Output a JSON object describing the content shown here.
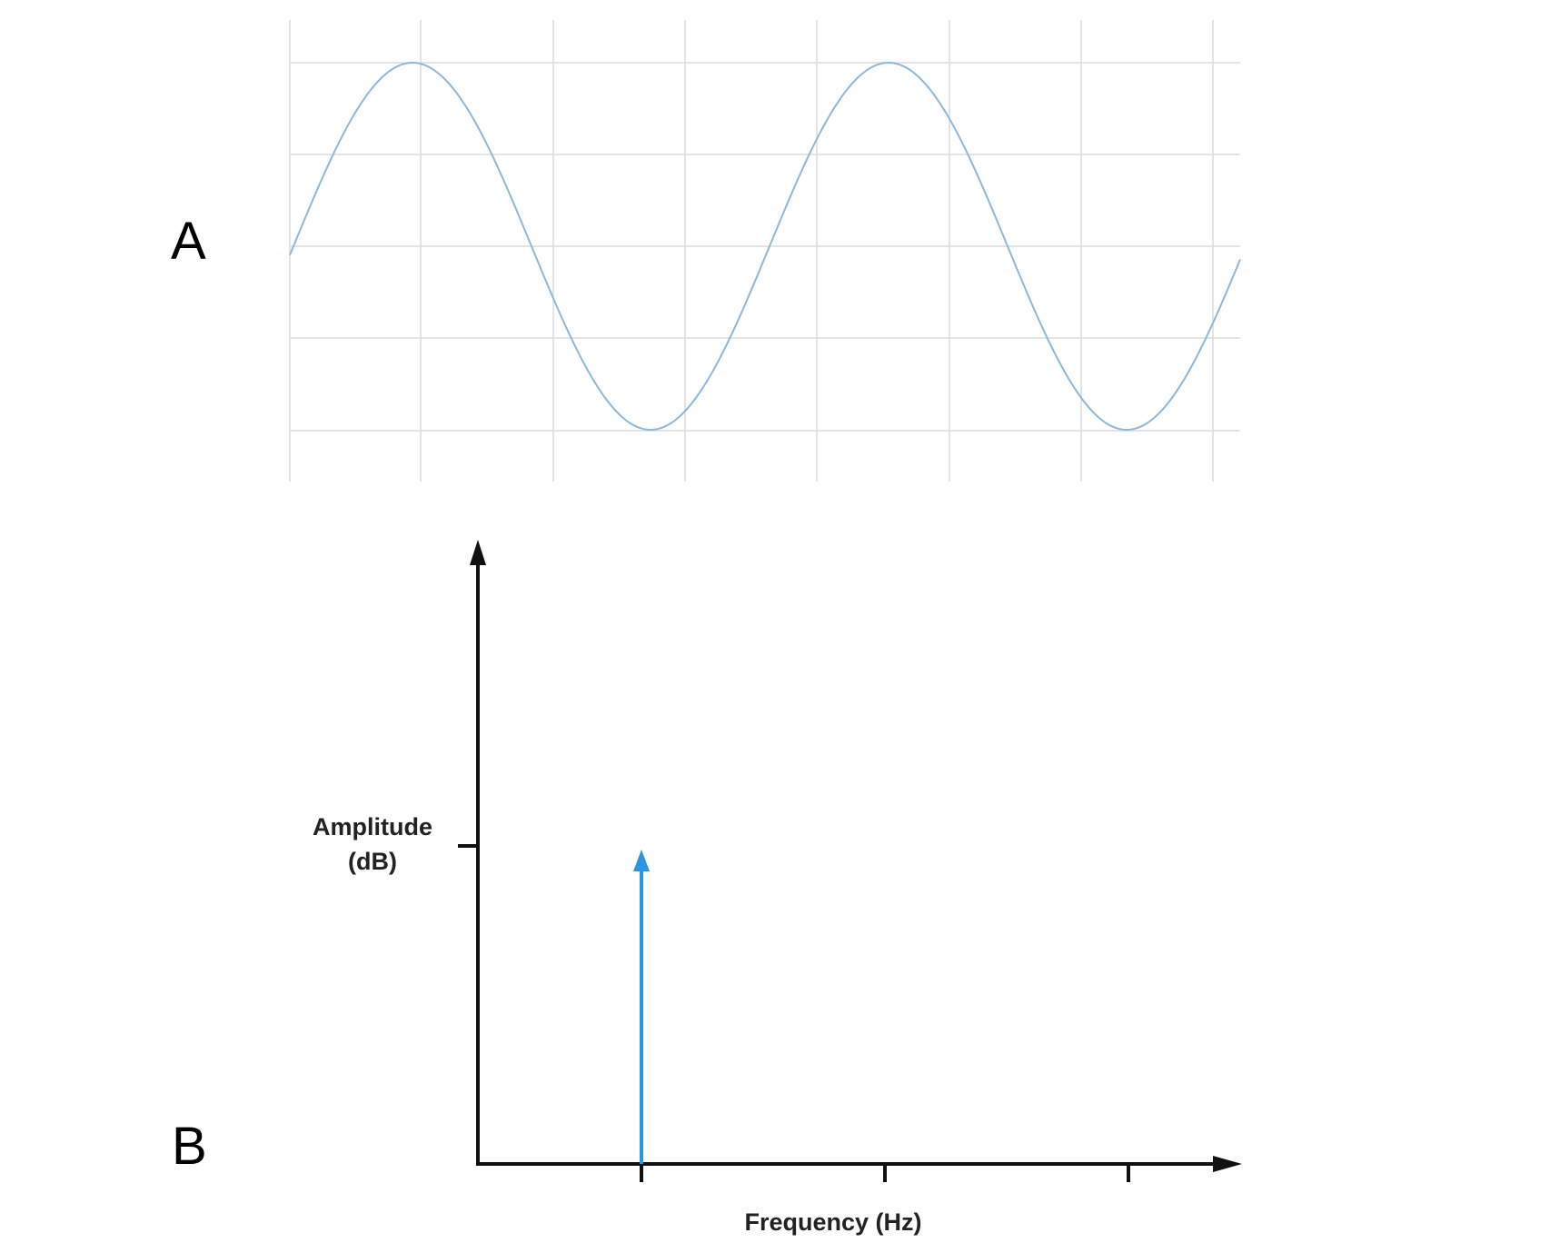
{
  "panels": {
    "a_label": "A",
    "b_label": "B"
  },
  "colors": {
    "wave": "#8fb8d8",
    "grid": "#dcdcdc",
    "spike": "#2b95e0",
    "axis": "#111111"
  },
  "chart_data": [
    {
      "type": "line",
      "panel": "A",
      "function": "sine",
      "cycles": 2,
      "grid": true,
      "xlabel": "",
      "ylabel": ""
    },
    {
      "type": "line",
      "panel": "B",
      "xlabel": "Frequency (Hz)",
      "ylabel": "Amplitude\n(dB)",
      "ylabel_lines": [
        "Amplitude",
        "(dB)"
      ],
      "x_ticks": 3,
      "y_ticks": 1,
      "spikes": [
        {
          "x_tick": 1,
          "value_tick": 1
        }
      ],
      "grid": false
    }
  ]
}
